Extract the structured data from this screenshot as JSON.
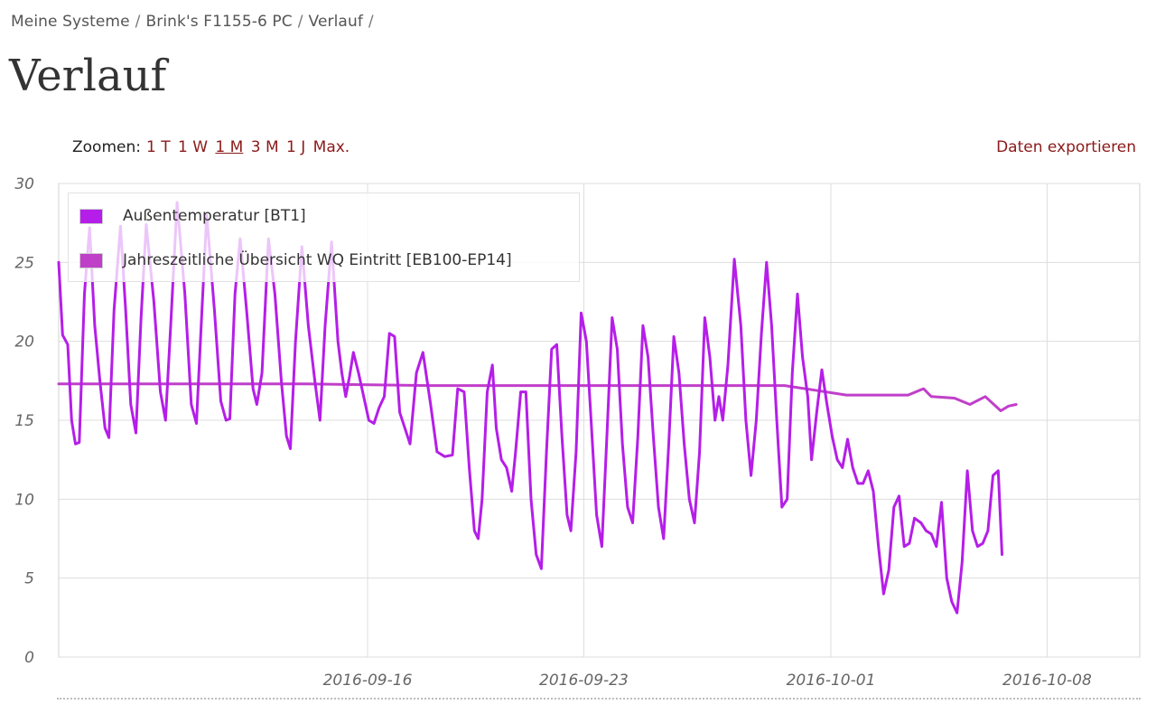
{
  "breadcrumb": [
    "Meine Systeme",
    "Brink's F1155-6 PC",
    "Verlauf"
  ],
  "breadcrumb_sep": "/",
  "page_title": "Verlauf",
  "zoom": {
    "label": "Zoomen:",
    "options": [
      "1 T",
      "1 W",
      "1 M",
      "3 M",
      "1 J",
      "Max."
    ],
    "active": "1 M"
  },
  "export_label": "Daten exportieren",
  "colors": {
    "link": "#8b1a1a",
    "series_outdoor": "#b51ee8",
    "series_brine": "#c03fc9",
    "grid": "#dddddd"
  },
  "chart_data": {
    "type": "line",
    "title": "",
    "xlabel": "",
    "ylabel": "",
    "ylim": [
      0,
      30
    ],
    "yticks": [
      0,
      5,
      10,
      15,
      20,
      25,
      30
    ],
    "xlim": [
      "2016-09-06",
      "2016-10-11"
    ],
    "xticks": [
      "2016-09-16",
      "2016-09-23",
      "2016-10-01",
      "2016-10-08"
    ],
    "grid": true,
    "legend_position": "top-left",
    "series": [
      {
        "name": "Außentemperatur [BT1]",
        "color": "#b51ee8",
        "points": [
          [
            "2016-09-06 00:00",
            25.0
          ],
          [
            "2016-09-06 03:00",
            20.4
          ],
          [
            "2016-09-06 07:00",
            19.8
          ],
          [
            "2016-09-06 10:00",
            15.0
          ],
          [
            "2016-09-06 13:00",
            13.5
          ],
          [
            "2016-09-06 16:00",
            13.6
          ],
          [
            "2016-09-06 20:00",
            23.0
          ],
          [
            "2016-09-07 00:00",
            27.2
          ],
          [
            "2016-09-07 04:00",
            21.0
          ],
          [
            "2016-09-07 08:00",
            17.5
          ],
          [
            "2016-09-07 12:00",
            14.5
          ],
          [
            "2016-09-07 15:00",
            13.9
          ],
          [
            "2016-09-07 19:00",
            22.0
          ],
          [
            "2016-09-08 00:00",
            27.3
          ],
          [
            "2016-09-08 04:00",
            22.0
          ],
          [
            "2016-09-08 08:00",
            16.0
          ],
          [
            "2016-09-08 12:00",
            14.2
          ],
          [
            "2016-09-08 16:00",
            21.5
          ],
          [
            "2016-09-08 20:00",
            27.4
          ],
          [
            "2016-09-09 02:00",
            22.5
          ],
          [
            "2016-09-09 07:00",
            16.8
          ],
          [
            "2016-09-09 11:00",
            15.0
          ],
          [
            "2016-09-09 15:00",
            21.0
          ],
          [
            "2016-09-09 20:00",
            28.8
          ],
          [
            "2016-09-10 02:00",
            23.0
          ],
          [
            "2016-09-10 07:00",
            16.0
          ],
          [
            "2016-09-10 11:00",
            14.8
          ],
          [
            "2016-09-10 15:00",
            21.5
          ],
          [
            "2016-09-10 19:00",
            28.0
          ],
          [
            "2016-09-11 01:00",
            22.0
          ],
          [
            "2016-09-11 06:00",
            16.2
          ],
          [
            "2016-09-11 10:00",
            15.0
          ],
          [
            "2016-09-11 13:00",
            15.1
          ],
          [
            "2016-09-11 17:00",
            23.0
          ],
          [
            "2016-09-11 21:00",
            26.5
          ],
          [
            "2016-09-12 02:00",
            22.0
          ],
          [
            "2016-09-12 07:00",
            17.0
          ],
          [
            "2016-09-12 10:00",
            16.0
          ],
          [
            "2016-09-12 14:00",
            18.0
          ],
          [
            "2016-09-12 19:00",
            26.5
          ],
          [
            "2016-09-13 00:00",
            23.0
          ],
          [
            "2016-09-13 05:00",
            17.5
          ],
          [
            "2016-09-13 09:00",
            14.0
          ],
          [
            "2016-09-13 12:00",
            13.2
          ],
          [
            "2016-09-13 16:00",
            20.0
          ],
          [
            "2016-09-13 21:00",
            26.0
          ],
          [
            "2016-09-14 02:00",
            21.0
          ],
          [
            "2016-09-14 07:00",
            17.5
          ],
          [
            "2016-09-14 11:00",
            15.0
          ],
          [
            "2016-09-14 15:00",
            21.0
          ],
          [
            "2016-09-14 20:00",
            26.3
          ],
          [
            "2016-09-15 01:00",
            20.0
          ],
          [
            "2016-09-15 04:00",
            18.0
          ],
          [
            "2016-09-15 07:00",
            16.5
          ],
          [
            "2016-09-15 10:00",
            17.8
          ],
          [
            "2016-09-15 13:00",
            19.3
          ],
          [
            "2016-09-15 17:00",
            18.0
          ],
          [
            "2016-09-15 21:00",
            16.5
          ],
          [
            "2016-09-16 01:00",
            15.0
          ],
          [
            "2016-09-16 05:00",
            14.8
          ],
          [
            "2016-09-16 09:00",
            15.8
          ],
          [
            "2016-09-16 13:00",
            16.5
          ],
          [
            "2016-09-16 17:00",
            20.5
          ],
          [
            "2016-09-16 21:00",
            20.3
          ],
          [
            "2016-09-17 01:00",
            15.5
          ],
          [
            "2016-09-17 05:00",
            14.5
          ],
          [
            "2016-09-17 09:00",
            13.5
          ],
          [
            "2016-09-17 14:00",
            18.0
          ],
          [
            "2016-09-17 19:00",
            19.3
          ],
          [
            "2016-09-18 01:00",
            16.0
          ],
          [
            "2016-09-18 06:00",
            13.0
          ],
          [
            "2016-09-18 12:00",
            12.7
          ],
          [
            "2016-09-18 18:00",
            12.8
          ],
          [
            "2016-09-18 22:00",
            17.0
          ],
          [
            "2016-09-19 03:00",
            16.8
          ],
          [
            "2016-09-19 07:00",
            12.0
          ],
          [
            "2016-09-19 11:00",
            8.0
          ],
          [
            "2016-09-19 14:00",
            7.5
          ],
          [
            "2016-09-19 17:00",
            10.0
          ],
          [
            "2016-09-19 21:00",
            16.8
          ],
          [
            "2016-09-20 01:00",
            18.5
          ],
          [
            "2016-09-20 04:00",
            14.5
          ],
          [
            "2016-09-20 08:00",
            12.5
          ],
          [
            "2016-09-20 12:00",
            12.0
          ],
          [
            "2016-09-20 16:00",
            10.5
          ],
          [
            "2016-09-20 19:00",
            13.0
          ],
          [
            "2016-09-20 23:00",
            16.8
          ],
          [
            "2016-09-21 03:00",
            16.8
          ],
          [
            "2016-09-21 07:00",
            10.0
          ],
          [
            "2016-09-21 11:00",
            6.5
          ],
          [
            "2016-09-21 15:00",
            5.6
          ],
          [
            "2016-09-21 19:00",
            13.0
          ],
          [
            "2016-09-21 23:00",
            19.5
          ],
          [
            "2016-09-22 03:00",
            19.8
          ],
          [
            "2016-09-22 07:00",
            14.0
          ],
          [
            "2016-09-22 11:00",
            9.0
          ],
          [
            "2016-09-22 14:00",
            8.0
          ],
          [
            "2016-09-22 18:00",
            13.0
          ],
          [
            "2016-09-22 22:00",
            21.8
          ],
          [
            "2016-09-23 02:00",
            20.0
          ],
          [
            "2016-09-23 06:00",
            14.5
          ],
          [
            "2016-09-23 10:00",
            9.0
          ],
          [
            "2016-09-23 14:00",
            7.0
          ],
          [
            "2016-09-23 18:00",
            14.0
          ],
          [
            "2016-09-23 22:00",
            21.5
          ],
          [
            "2016-09-24 02:00",
            19.5
          ],
          [
            "2016-09-24 06:00",
            13.5
          ],
          [
            "2016-09-24 10:00",
            9.5
          ],
          [
            "2016-09-24 14:00",
            8.5
          ],
          [
            "2016-09-24 18:00",
            14.0
          ],
          [
            "2016-09-24 22:00",
            21.0
          ],
          [
            "2016-09-25 02:00",
            19.0
          ],
          [
            "2016-09-25 06:00",
            14.0
          ],
          [
            "2016-09-25 10:00",
            9.5
          ],
          [
            "2016-09-25 14:00",
            7.5
          ],
          [
            "2016-09-25 18:00",
            13.5
          ],
          [
            "2016-09-25 22:00",
            20.3
          ],
          [
            "2016-09-26 02:00",
            18.0
          ],
          [
            "2016-09-26 06:00",
            13.5
          ],
          [
            "2016-09-26 10:00",
            10.0
          ],
          [
            "2016-09-26 14:00",
            8.5
          ],
          [
            "2016-09-26 18:00",
            13.0
          ],
          [
            "2016-09-26 22:00",
            21.5
          ],
          [
            "2016-09-27 02:00",
            19.0
          ],
          [
            "2016-09-27 06:00",
            15.0
          ],
          [
            "2016-09-27 09:00",
            16.5
          ],
          [
            "2016-09-27 12:00",
            15.0
          ],
          [
            "2016-09-27 16:00",
            18.5
          ],
          [
            "2016-09-27 21:00",
            25.2
          ],
          [
            "2016-09-28 02:00",
            21.0
          ],
          [
            "2016-09-28 06:00",
            15.0
          ],
          [
            "2016-09-28 10:00",
            11.5
          ],
          [
            "2016-09-28 14:00",
            15.0
          ],
          [
            "2016-09-28 18:00",
            20.5
          ],
          [
            "2016-09-28 22:00",
            25.0
          ],
          [
            "2016-09-29 02:00",
            21.0
          ],
          [
            "2016-09-29 06:00",
            15.0
          ],
          [
            "2016-09-29 10:00",
            9.5
          ],
          [
            "2016-09-29 14:00",
            10.0
          ],
          [
            "2016-09-29 18:00",
            18.0
          ],
          [
            "2016-09-29 22:00",
            23.0
          ],
          [
            "2016-09-30 02:00",
            19.0
          ],
          [
            "2016-09-30 06:00",
            16.5
          ],
          [
            "2016-09-30 09:00",
            12.5
          ],
          [
            "2016-09-30 13:00",
            15.5
          ],
          [
            "2016-09-30 17:00",
            18.2
          ],
          [
            "2016-09-30 21:00",
            16.0
          ],
          [
            "2016-10-01 01:00",
            14.0
          ],
          [
            "2016-10-01 05:00",
            12.5
          ],
          [
            "2016-10-01 09:00",
            12.0
          ],
          [
            "2016-10-01 13:00",
            13.8
          ],
          [
            "2016-10-01 17:00",
            12.0
          ],
          [
            "2016-10-01 21:00",
            11.0
          ],
          [
            "2016-10-02 01:00",
            11.0
          ],
          [
            "2016-10-02 05:00",
            11.8
          ],
          [
            "2016-10-02 09:00",
            10.5
          ],
          [
            "2016-10-02 13:00",
            7.0
          ],
          [
            "2016-10-02 17:00",
            4.0
          ],
          [
            "2016-10-02 21:00",
            5.5
          ],
          [
            "2016-10-03 01:00",
            9.5
          ],
          [
            "2016-10-03 05:00",
            10.2
          ],
          [
            "2016-10-03 09:00",
            7.0
          ],
          [
            "2016-10-03 13:00",
            7.2
          ],
          [
            "2016-10-03 17:00",
            8.8
          ],
          [
            "2016-10-03 22:00",
            8.5
          ],
          [
            "2016-10-04 02:00",
            8.0
          ],
          [
            "2016-10-04 06:00",
            7.8
          ],
          [
            "2016-10-04 10:00",
            7.0
          ],
          [
            "2016-10-04 14:00",
            9.8
          ],
          [
            "2016-10-04 18:00",
            5.0
          ],
          [
            "2016-10-04 22:00",
            3.5
          ],
          [
            "2016-10-05 02:00",
            2.8
          ],
          [
            "2016-10-05 06:00",
            6.0
          ],
          [
            "2016-10-05 10:00",
            11.8
          ],
          [
            "2016-10-05 14:00",
            8.0
          ],
          [
            "2016-10-05 18:00",
            7.0
          ],
          [
            "2016-10-05 22:00",
            7.2
          ],
          [
            "2016-10-06 02:00",
            8.0
          ],
          [
            "2016-10-06 06:00",
            11.5
          ],
          [
            "2016-10-06 10:00",
            11.8
          ],
          [
            "2016-10-06 13:00",
            6.5
          ]
        ]
      },
      {
        "name": "Jahreszeitliche Übersicht WQ Eintritt [EB100-EP14]",
        "color": "#c03fc9",
        "points": [
          [
            "2016-09-06 00:00",
            17.3
          ],
          [
            "2016-09-14 00:00",
            17.3
          ],
          [
            "2016-09-18 00:00",
            17.2
          ],
          [
            "2016-09-26 00:00",
            17.2
          ],
          [
            "2016-09-29 12:00",
            17.2
          ],
          [
            "2016-09-30 12:00",
            16.9
          ],
          [
            "2016-10-01 12:00",
            16.6
          ],
          [
            "2016-10-03 12:00",
            16.6
          ],
          [
            "2016-10-04 00:00",
            17.0
          ],
          [
            "2016-10-04 06:00",
            16.5
          ],
          [
            "2016-10-05 00:00",
            16.4
          ],
          [
            "2016-10-05 12:00",
            16.0
          ],
          [
            "2016-10-06 00:00",
            16.5
          ],
          [
            "2016-10-06 12:00",
            15.6
          ],
          [
            "2016-10-06 18:00",
            15.9
          ],
          [
            "2016-10-07 00:00",
            16.0
          ]
        ]
      }
    ]
  }
}
